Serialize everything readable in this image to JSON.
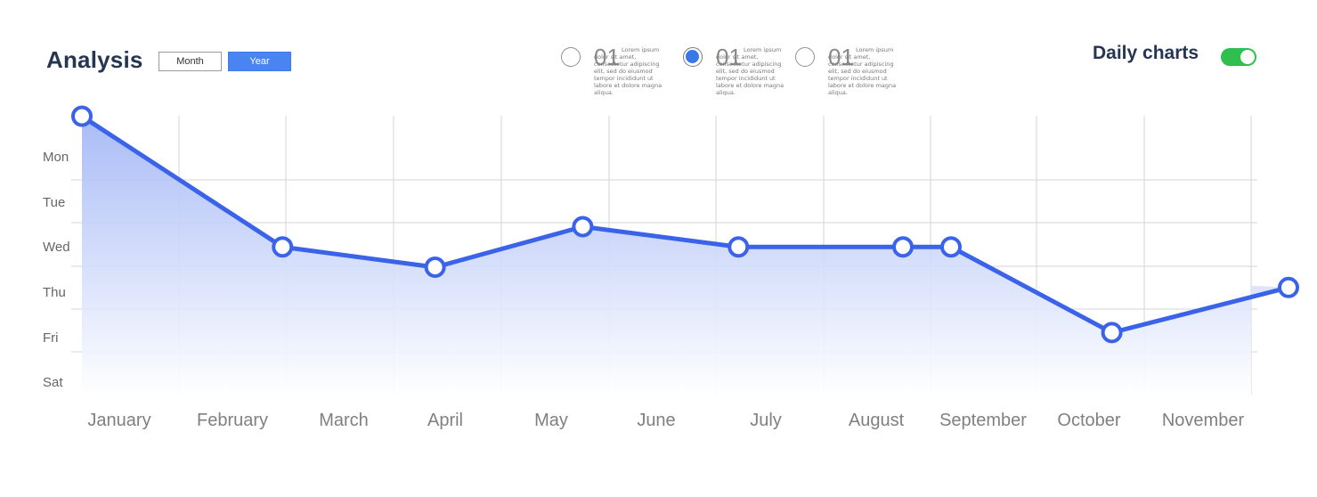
{
  "header": {
    "title": "Analysis",
    "view_toggle": {
      "options": [
        "Month",
        "Year"
      ],
      "selected": "Year"
    },
    "legend": [
      {
        "number": "01",
        "text": "Lorem ipsum dolor sit amet, consectetur adipiscing elit, sed do eiusmod tempor incididunt ut labore et dolore magna aliqua.",
        "selected": false
      },
      {
        "number": "01",
        "text": "Lorem ipsum dolor sit amet, consectetur adipiscing elit, sed do eiusmod tempor incididunt ut labore et dolore magna aliqua.",
        "selected": true
      },
      {
        "number": "01",
        "text": "Lorem ipsum dolor sit amet, consectetur adipiscing elit, sed do eiusmod tempor incididunt ut labore et dolore magna aliqua.",
        "selected": false
      }
    ],
    "daily_charts": {
      "label": "Daily charts",
      "on": true
    }
  },
  "colors": {
    "line": "#3a63ea",
    "fill_top": "#9fb4f5",
    "fill_bottom": "#ffffff",
    "grid": "#d6d6d6",
    "toggle_on": "#2fbf4f",
    "accent": "#4a84f3"
  },
  "chart_data": {
    "type": "area",
    "x_categories": [
      "January",
      "February",
      "March",
      "April",
      "May",
      "June",
      "July",
      "August",
      "September",
      "October",
      "November"
    ],
    "y_categories": [
      "Mon",
      "Tue",
      "Wed",
      "Thu",
      "Fri",
      "Sat"
    ],
    "y_direction": "Mon at top, Sat at bottom",
    "grid": true,
    "points": [
      {
        "x": 0.0,
        "y": -0.8
      },
      {
        "x": 1.45,
        "y": 2.1
      },
      {
        "x": 2.9,
        "y": 2.55
      },
      {
        "x": 4.3,
        "y": 1.65
      },
      {
        "x": 5.75,
        "y": 2.1
      },
      {
        "x": 7.25,
        "y": 2.1
      },
      {
        "x": 7.7,
        "y": 2.1
      },
      {
        "x": 9.2,
        "y": 4.0
      },
      {
        "x": 10.75,
        "y": 3.0
      }
    ]
  }
}
